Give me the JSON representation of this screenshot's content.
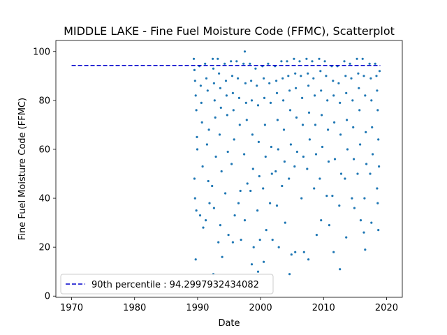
{
  "chart_data": {
    "type": "scatter",
    "title": "MIDDLE LAKE - Fine Fuel Moisture Code (FFMC), Scatterplot",
    "xlabel": "Date",
    "ylabel": "Fine Fuel Moisture Code (FFMC)",
    "xlim": [
      1967.5,
      2022.5
    ],
    "ylim": [
      -0.5,
      104.5
    ],
    "x_ticks": [
      1970,
      1980,
      1990,
      2000,
      2010,
      2020
    ],
    "x_tick_labels": [
      "1970",
      "1980",
      "1990",
      "2000",
      "2010",
      "2020"
    ],
    "y_ticks": [
      0,
      20,
      40,
      60,
      80,
      100
    ],
    "y_tick_labels": [
      "0",
      "20",
      "40",
      "60",
      "80",
      "100"
    ],
    "grid": false,
    "legend_position": "lower-left",
    "point_color": "#1f77b4",
    "line_color": "#0000cc",
    "reference_line": {
      "label": "90th percentile : 94.2997932434082",
      "y": 94.2997932434082,
      "x_start": 1970,
      "x_end": 2019,
      "style": "dashed"
    },
    "series": [
      {
        "kind": "scatter",
        "points": [
          [
            1989.4,
            97.0
          ],
          [
            1989.5,
            92.4
          ],
          [
            1989.6,
            88.0
          ],
          [
            1989.7,
            82.0
          ],
          [
            1989.8,
            76.0
          ],
          [
            1989.9,
            65.0
          ],
          [
            1989.95,
            60.0
          ],
          [
            1989.5,
            48.0
          ],
          [
            1989.6,
            40.0
          ],
          [
            1989.7,
            15.0
          ],
          [
            1989.8,
            35.0
          ],
          [
            1990.3,
            94.0
          ],
          [
            1990.5,
            86.0
          ],
          [
            1990.6,
            79.0
          ],
          [
            1990.7,
            71.0
          ],
          [
            1990.8,
            53.0
          ],
          [
            1990.9,
            28.0
          ],
          [
            1990.4,
            33.0
          ],
          [
            1991.2,
            95.0
          ],
          [
            1991.4,
            89.0
          ],
          [
            1991.6,
            84.0
          ],
          [
            1991.8,
            68.0
          ],
          [
            1991.5,
            62.0
          ],
          [
            1991.7,
            47.0
          ],
          [
            1991.3,
            31.0
          ],
          [
            1991.9,
            38.0
          ],
          [
            1992.4,
            97.0
          ],
          [
            1992.5,
            93.0
          ],
          [
            1992.6,
            87.0
          ],
          [
            1992.7,
            80.0
          ],
          [
            1992.8,
            73.0
          ],
          [
            1992.9,
            57.0
          ],
          [
            1992.3,
            45.0
          ],
          [
            1992.5,
            9.0
          ],
          [
            1992.6,
            36.0
          ],
          [
            1993.2,
            97.0
          ],
          [
            1993.4,
            91.0
          ],
          [
            1993.6,
            85.0
          ],
          [
            1993.7,
            77.0
          ],
          [
            1993.5,
            66.0
          ],
          [
            1993.8,
            51.0
          ],
          [
            1993.3,
            22.0
          ],
          [
            1993.9,
            16.0
          ],
          [
            1993.6,
            29.0
          ],
          [
            1994.3,
            95.0
          ],
          [
            1994.5,
            88.0
          ],
          [
            1994.6,
            82.0
          ],
          [
            1994.7,
            74.0
          ],
          [
            1994.8,
            59.0
          ],
          [
            1994.4,
            42.0
          ],
          [
            1994.9,
            25.0
          ],
          [
            1995.3,
            96.0
          ],
          [
            1995.5,
            90.0
          ],
          [
            1995.6,
            83.0
          ],
          [
            1995.7,
            76.0
          ],
          [
            1995.8,
            64.0
          ],
          [
            1995.4,
            54.0
          ],
          [
            1995.6,
            22.0
          ],
          [
            1995.9,
            33.0
          ],
          [
            1996.2,
            96.0
          ],
          [
            1996.4,
            89.0
          ],
          [
            1996.6,
            81.0
          ],
          [
            1996.7,
            70.0
          ],
          [
            1996.8,
            43.0
          ],
          [
            1996.5,
            38.0
          ],
          [
            1996.9,
            23.0
          ],
          [
            1997.3,
            95.0
          ],
          [
            1997.5,
            100.0
          ],
          [
            1997.6,
            87.0
          ],
          [
            1997.7,
            79.0
          ],
          [
            1997.8,
            72.0
          ],
          [
            1997.4,
            58.0
          ],
          [
            1997.9,
            46.0
          ],
          [
            1997.5,
            31.0
          ],
          [
            1998.3,
            95.0
          ],
          [
            1998.5,
            88.0
          ],
          [
            1998.6,
            80.0
          ],
          [
            1998.7,
            66.0
          ],
          [
            1998.8,
            52.0
          ],
          [
            1998.4,
            43.0
          ],
          [
            1998.6,
            13.0
          ],
          [
            1998.9,
            20.0
          ],
          [
            1999.2,
            93.0
          ],
          [
            1999.4,
            86.0
          ],
          [
            1999.6,
            78.0
          ],
          [
            1999.7,
            63.0
          ],
          [
            1999.8,
            49.0
          ],
          [
            1999.5,
            35.0
          ],
          [
            1999.6,
            10.0
          ],
          [
            1999.9,
            23.0
          ],
          [
            2000.3,
            94.0
          ],
          [
            2000.5,
            89.0
          ],
          [
            2000.6,
            81.0
          ],
          [
            2000.7,
            70.0
          ],
          [
            2000.8,
            57.0
          ],
          [
            2000.4,
            44.0
          ],
          [
            2000.9,
            27.0
          ],
          [
            2000.5,
            14.0
          ],
          [
            2001.2,
            95.0
          ],
          [
            2001.4,
            87.0
          ],
          [
            2001.6,
            79.0
          ],
          [
            2001.7,
            61.0
          ],
          [
            2001.8,
            50.0
          ],
          [
            2001.5,
            38.0
          ],
          [
            2001.9,
            23.0
          ],
          [
            2002.3,
            94.0
          ],
          [
            2002.5,
            88.0
          ],
          [
            2002.6,
            83.0
          ],
          [
            2002.7,
            72.0
          ],
          [
            2002.8,
            60.0
          ],
          [
            2002.4,
            51.0
          ],
          [
            2002.6,
            37.0
          ],
          [
            2002.9,
            20.0
          ],
          [
            2003.3,
            96.0
          ],
          [
            2003.5,
            89.0
          ],
          [
            2003.6,
            80.0
          ],
          [
            2003.7,
            68.0
          ],
          [
            2003.8,
            55.0
          ],
          [
            2003.4,
            45.0
          ],
          [
            2003.9,
            30.0
          ],
          [
            2004.2,
            96.0
          ],
          [
            2004.4,
            90.0
          ],
          [
            2004.6,
            84.0
          ],
          [
            2004.7,
            76.0
          ],
          [
            2004.8,
            62.0
          ],
          [
            2004.5,
            48.0
          ],
          [
            2004.6,
            9.0
          ],
          [
            2004.9,
            17.0
          ],
          [
            2005.3,
            97.0
          ],
          [
            2005.5,
            91.0
          ],
          [
            2005.6,
            85.0
          ],
          [
            2005.7,
            73.0
          ],
          [
            2005.8,
            59.0
          ],
          [
            2005.4,
            53.0
          ],
          [
            2005.5,
            18.0
          ],
          [
            2006.2,
            96.0
          ],
          [
            2006.4,
            90.0
          ],
          [
            2006.6,
            81.0
          ],
          [
            2006.7,
            70.0
          ],
          [
            2006.8,
            57.0
          ],
          [
            2006.5,
            40.0
          ],
          [
            2006.9,
            18.0
          ],
          [
            2007.3,
            97.0
          ],
          [
            2007.5,
            91.0
          ],
          [
            2007.6,
            86.0
          ],
          [
            2007.7,
            75.0
          ],
          [
            2007.8,
            64.0
          ],
          [
            2007.4,
            52.0
          ],
          [
            2007.6,
            15.0
          ],
          [
            2008.2,
            96.0
          ],
          [
            2008.4,
            89.0
          ],
          [
            2008.6,
            82.0
          ],
          [
            2008.7,
            70.0
          ],
          [
            2008.8,
            58.0
          ],
          [
            2008.5,
            44.0
          ],
          [
            2008.9,
            25.0
          ],
          [
            2009.3,
            97.0
          ],
          [
            2009.5,
            92.0
          ],
          [
            2009.6,
            84.0
          ],
          [
            2009.7,
            74.0
          ],
          [
            2009.8,
            61.0
          ],
          [
            2009.4,
            48.0
          ],
          [
            2009.6,
            31.0
          ],
          [
            2010.2,
            96.0
          ],
          [
            2010.4,
            90.0
          ],
          [
            2010.6,
            80.0
          ],
          [
            2010.7,
            68.0
          ],
          [
            2010.8,
            55.0
          ],
          [
            2010.5,
            41.0
          ],
          [
            2010.9,
            29.0
          ],
          [
            2011.3,
            94.0
          ],
          [
            2011.5,
            88.0
          ],
          [
            2011.6,
            82.0
          ],
          [
            2011.7,
            71.0
          ],
          [
            2011.8,
            56.0
          ],
          [
            2011.4,
            41.0
          ],
          [
            2011.6,
            18.0
          ],
          [
            2012.2,
            94.0
          ],
          [
            2012.4,
            87.0
          ],
          [
            2012.6,
            79.0
          ],
          [
            2012.7,
            66.0
          ],
          [
            2012.8,
            50.0
          ],
          [
            2012.5,
            37.0
          ],
          [
            2012.6,
            11.0
          ],
          [
            2013.3,
            96.0
          ],
          [
            2013.5,
            90.0
          ],
          [
            2013.6,
            83.0
          ],
          [
            2013.7,
            72.0
          ],
          [
            2013.8,
            60.0
          ],
          [
            2013.4,
            48.0
          ],
          [
            2013.6,
            24.0
          ],
          [
            2014.2,
            95.0
          ],
          [
            2014.4,
            89.0
          ],
          [
            2014.6,
            80.0
          ],
          [
            2014.7,
            69.0
          ],
          [
            2014.8,
            56.0
          ],
          [
            2014.5,
            40.0
          ],
          [
            2014.9,
            36.0
          ],
          [
            2015.3,
            97.0
          ],
          [
            2015.5,
            91.0
          ],
          [
            2015.6,
            85.0
          ],
          [
            2015.7,
            76.0
          ],
          [
            2015.8,
            62.0
          ],
          [
            2015.4,
            50.0
          ],
          [
            2015.9,
            31.0
          ],
          [
            2016.2,
            97.0
          ],
          [
            2016.4,
            90.0
          ],
          [
            2016.6,
            82.0
          ],
          [
            2016.7,
            67.0
          ],
          [
            2016.8,
            54.0
          ],
          [
            2016.5,
            40.0
          ],
          [
            2016.6,
            19.0
          ],
          [
            2016.4,
            26.0
          ],
          [
            2017.3,
            95.0
          ],
          [
            2017.5,
            89.0
          ],
          [
            2017.6,
            80.0
          ],
          [
            2017.7,
            69.0
          ],
          [
            2017.8,
            58.0
          ],
          [
            2017.4,
            50.0
          ],
          [
            2017.6,
            30.0
          ],
          [
            2018.2,
            95.0
          ],
          [
            2018.4,
            90.0
          ],
          [
            2018.5,
            84.0
          ],
          [
            2018.6,
            76.0
          ],
          [
            2018.7,
            64.0
          ],
          [
            2018.8,
            53.0
          ],
          [
            2018.5,
            44.0
          ],
          [
            2018.6,
            38.0
          ],
          [
            2018.7,
            27.0
          ],
          [
            2018.9,
            92.0
          ]
        ]
      }
    ]
  }
}
